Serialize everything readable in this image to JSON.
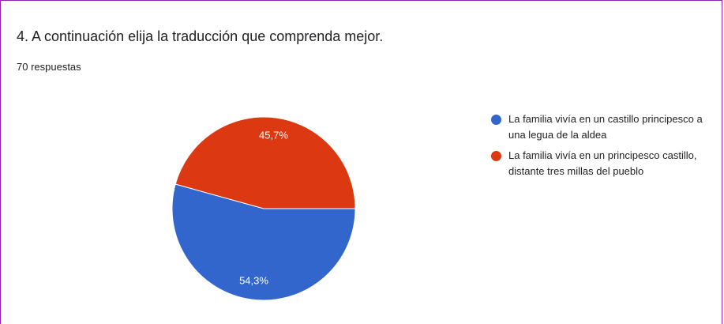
{
  "chart_data": {
    "type": "pie",
    "title": "4. A continuación elija la traducción que comprenda mejor.",
    "subtitle": "70 respuestas",
    "categories": [
      "La familia vivía en un castillo principesco a una legua de la aldea",
      "La familia vivía en un principesco castillo, distante tres millas del pueblo"
    ],
    "values": [
      54.3,
      45.7
    ],
    "value_labels": [
      "54,3%",
      "45,7%"
    ],
    "colors": [
      "#3366cc",
      "#dc3912"
    ],
    "legend": "right"
  }
}
